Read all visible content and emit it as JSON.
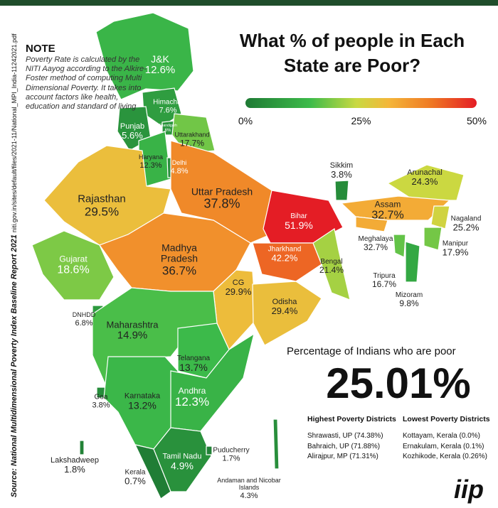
{
  "title": "What % of people in Each State are Poor?",
  "note": {
    "heading": "NOTE",
    "text": "Poverty Rate is calculated by the NITI Aayog according to the Alkire-Foster method of computing Multi Dimensional Poverty. It takes into account factors like health, education and standard of living"
  },
  "source": {
    "text": "Source: National Multidimensional Poverty Index Baseline Report 2021",
    "url": "niti.gov.in/sites/default/files/2021-11/National_MPI_India-11242021.pdf"
  },
  "scale": {
    "ticks": [
      {
        "value": 0,
        "label": "0%"
      },
      {
        "value": 25,
        "label": "25%"
      },
      {
        "value": 50,
        "label": "50%"
      }
    ]
  },
  "states": [
    {
      "name": "J&K",
      "value": 12.6,
      "label": "12.6%"
    },
    {
      "name": "Himachal",
      "value": 7.6,
      "label": "7.6%"
    },
    {
      "name": "Chandigarh",
      "value": 6,
      "label": "6%"
    },
    {
      "name": "Punjab",
      "value": 5.6,
      "label": "5.6%"
    },
    {
      "name": "Uttarakhand",
      "value": 17.7,
      "label": "17.7%"
    },
    {
      "name": "Haryana",
      "value": 12.3,
      "label": "12.3%"
    },
    {
      "name": "Delhi",
      "value": 4.8,
      "label": "4.8%"
    },
    {
      "name": "Rajasthan",
      "value": 29.5,
      "label": "29.5%"
    },
    {
      "name": "Uttar Pradesh",
      "value": 37.8,
      "label": "37.8%"
    },
    {
      "name": "Bihar",
      "value": 51.9,
      "label": "51.9%"
    },
    {
      "name": "Sikkim",
      "value": 3.8,
      "label": "3.8%"
    },
    {
      "name": "Arunachal",
      "value": 24.3,
      "label": "24.3%"
    },
    {
      "name": "Assam",
      "value": 32.7,
      "label": "32.7%"
    },
    {
      "name": "Nagaland",
      "value": 25.2,
      "label": "25.2%"
    },
    {
      "name": "Meghalaya",
      "value": 32.7,
      "label": "32.7%"
    },
    {
      "name": "Manipur",
      "value": 17.9,
      "label": "17.9%"
    },
    {
      "name": "Tripura",
      "value": 16.7,
      "label": "16.7%"
    },
    {
      "name": "Mizoram",
      "value": 9.8,
      "label": "9.8%"
    },
    {
      "name": "Gujarat",
      "value": 18.6,
      "label": "18.6%"
    },
    {
      "name": "Madhya Pradesh",
      "value": 36.7,
      "label": "36.7%"
    },
    {
      "name": "Jharkhand",
      "value": 42.2,
      "label": "42.2%"
    },
    {
      "name": "Bengal",
      "value": 21.4,
      "label": "21.4%"
    },
    {
      "name": "CG",
      "value": 29.9,
      "label": "29.9%"
    },
    {
      "name": "Odisha",
      "value": 29.4,
      "label": "29.4%"
    },
    {
      "name": "DNHDD",
      "value": 6.8,
      "label": "6.8%"
    },
    {
      "name": "Maharashtra",
      "value": 14.9,
      "label": "14.9%"
    },
    {
      "name": "Telangana",
      "value": 13.7,
      "label": "13.7%"
    },
    {
      "name": "Goa",
      "value": 3.8,
      "label": "3.8%"
    },
    {
      "name": "Karnataka",
      "value": 13.2,
      "label": "13.2%"
    },
    {
      "name": "Andhra",
      "value": 12.3,
      "label": "12.3%"
    },
    {
      "name": "Lakshadweep",
      "value": 1.8,
      "label": "1.8%"
    },
    {
      "name": "Kerala",
      "value": 0.7,
      "label": "0.7%"
    },
    {
      "name": "Tamil Nadu",
      "value": 4.9,
      "label": "4.9%"
    },
    {
      "name": "Puducherry",
      "value": 1.7,
      "label": "1.7%"
    },
    {
      "name": "Andaman and Nicobar Islands",
      "value": 4.3,
      "label": "4.3%"
    }
  ],
  "summary": {
    "heading": "Percentage of Indians who are poor",
    "value": "25.01%"
  },
  "highest": {
    "heading": "Highest Poverty Districts",
    "items": [
      "Shrawasti, UP (74.38%)",
      "Bahraich, UP (71.88%)",
      "Alirajpur, MP (71.31%)"
    ]
  },
  "lowest": {
    "heading": "Lowest Poverty Districts",
    "items": [
      "Kottayam, Kerala (0.0%)",
      "Ernakulam, Kerala (0.1%)",
      "Kozhikode, Kerala (0.26%)"
    ]
  },
  "logo": "iip"
}
